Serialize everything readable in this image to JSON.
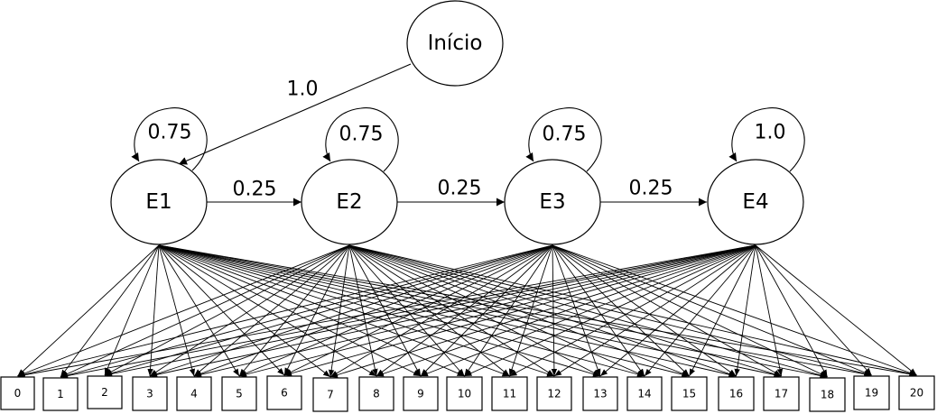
{
  "start_node": {
    "label": "Início"
  },
  "start_edge": {
    "label": "1.0"
  },
  "states": [
    {
      "id": "E1",
      "label": "E1",
      "self_loop": "0.75",
      "next": "0.25"
    },
    {
      "id": "E2",
      "label": "E2",
      "self_loop": "0.75",
      "next": "0.25"
    },
    {
      "id": "E3",
      "label": "E3",
      "self_loop": "0.75",
      "next": "0.25"
    },
    {
      "id": "E4",
      "label": "E4",
      "self_loop": "1.0",
      "next": null
    }
  ],
  "observations": [
    "0",
    "1",
    "2",
    "3",
    "4",
    "5",
    "6",
    "7",
    "8",
    "9",
    "10",
    "11",
    "12",
    "13",
    "14",
    "15",
    "16",
    "17",
    "18",
    "19",
    "20"
  ],
  "emissions": "every state connects to every observation"
}
